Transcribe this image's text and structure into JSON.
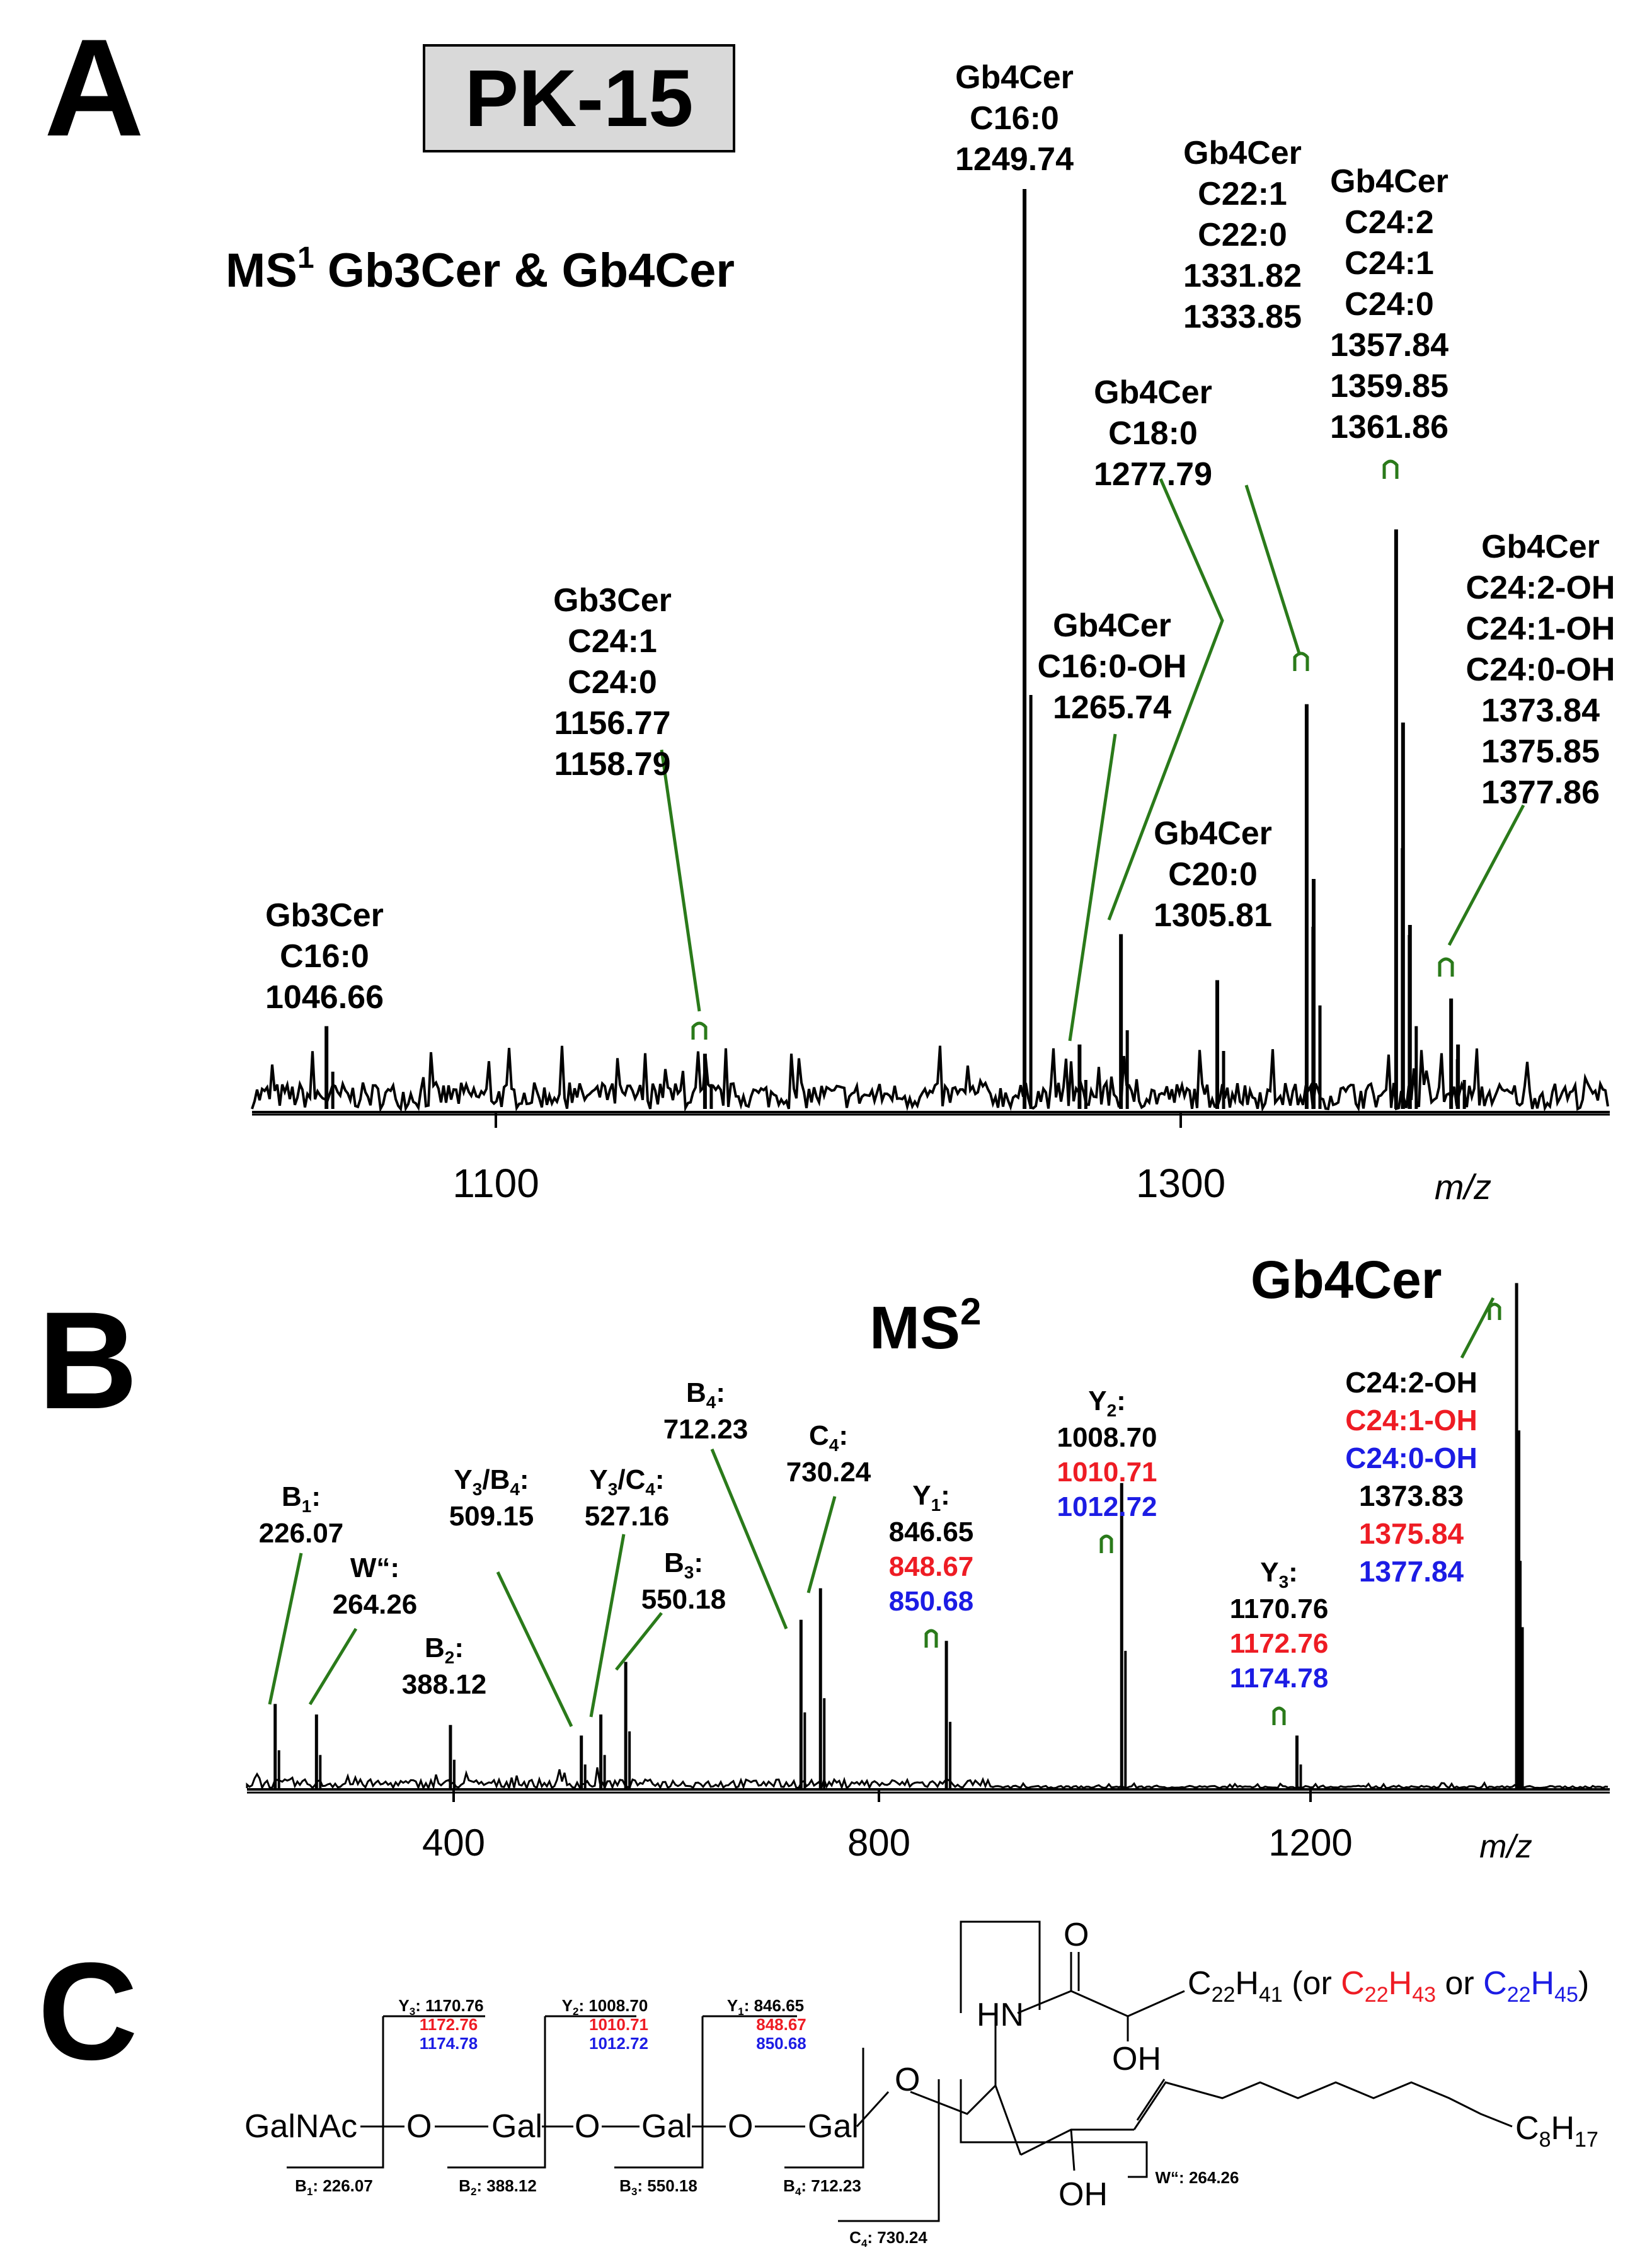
{
  "panel_a": {
    "letter": "A",
    "cell_line": "PK-15",
    "heading": "MS",
    "heading_sup": "1",
    "heading_rest": " Gb3Cer & Gb4Cer",
    "ticks": [
      "1100",
      "1300"
    ],
    "xlabel": "m/z",
    "labels": [
      [
        "Gb3Cer",
        "C16:0",
        "1046.66"
      ],
      [
        "Gb3Cer",
        "C24:1",
        "C24:0",
        "1156.77",
        "1158.79"
      ],
      [
        "Gb4Cer",
        "C16:0",
        "1249.74"
      ],
      [
        "Gb4Cer",
        "C16:0-OH",
        "1265.74"
      ],
      [
        "Gb4Cer",
        "C18:0",
        "1277.79"
      ],
      [
        "Gb4Cer",
        "C20:0",
        "1305.81"
      ],
      [
        "Gb4Cer",
        "C22:1",
        "C22:0",
        "1331.82",
        "1333.85"
      ],
      [
        "Gb4Cer",
        "C24:2",
        "C24:1",
        "C24:0",
        "1357.84",
        "1359.85",
        "1361.86"
      ],
      [
        "Gb4Cer",
        "C24:2-OH",
        "C24:1-OH",
        "C24:0-OH",
        "1373.84",
        "1375.85",
        "1377.86"
      ]
    ]
  },
  "panel_b": {
    "letter": "B",
    "heading": "MS",
    "heading_sup": "2",
    "compound": "Gb4Cer",
    "ticks": [
      "400",
      "800",
      "1200"
    ],
    "xlabel": "m/z",
    "ion_labels": {
      "B1": [
        "B",
        "1",
        ":",
        "226.07"
      ],
      "W": [
        "W“:",
        "264.26"
      ],
      "B2": [
        "B",
        "2",
        ":",
        "388.12"
      ],
      "Y3B4": [
        "Y",
        "3",
        "/B",
        "4",
        ":",
        "509.15"
      ],
      "Y3C4": [
        "Y",
        "3",
        "/C",
        "4",
        ":",
        "527.16"
      ],
      "B3": [
        "B",
        "3",
        ":",
        "550.18"
      ],
      "B4": [
        "B",
        "4",
        ":",
        "712.23"
      ],
      "C4": [
        "C",
        "4",
        ":",
        "730.24"
      ],
      "Y1": [
        "Y",
        "1",
        ":",
        "846.65",
        "848.67",
        "850.68"
      ],
      "Y2": [
        "Y",
        "2",
        ":",
        "1008.70",
        "1010.71",
        "1012.72"
      ],
      "Y3": [
        "Y",
        "3",
        ":",
        "1170.76",
        "1172.76",
        "1174.78"
      ],
      "prec": [
        "C24:2-OH",
        "C24:1-OH",
        "C24:0-OH",
        "1373.83",
        "1375.84",
        "1377.84"
      ]
    }
  },
  "panel_c": {
    "letter": "C",
    "sugars": [
      "GalNAc",
      "O",
      "Gal",
      "O",
      "Gal",
      "O",
      "Gal",
      "O"
    ],
    "y_frag": {
      "Y3": [
        "Y",
        "3",
        ": 1170.76",
        "1172.76",
        "1174.78"
      ],
      "Y2": [
        "Y",
        "2",
        ": 1008.70",
        "1010.71",
        "1012.72"
      ],
      "Y1": [
        "Y",
        "1",
        ": 846.65",
        "848.67",
        "850.68"
      ]
    },
    "b_frag": {
      "B1": [
        "B",
        "1",
        ": 226.07"
      ],
      "B2": [
        "B",
        "2",
        ": 388.12"
      ],
      "B3": [
        "B",
        "3",
        ": 550.18"
      ],
      "B4": [
        "B",
        "4",
        ": 712.23"
      ],
      "C4": [
        "C",
        "4",
        ": 730.24"
      ],
      "W": [
        "W“: 264.26"
      ]
    },
    "atoms": {
      "O": "O",
      "HN": "HN",
      "OH1": "OH",
      "OH2": "OH"
    },
    "chain": [
      "C",
      "22",
      "H",
      "41",
      " (or ",
      "C",
      "22",
      "H",
      "43",
      " or ",
      "C",
      "22",
      "H",
      "45",
      ")"
    ],
    "tail": [
      "C",
      "8",
      "H",
      "17"
    ]
  },
  "colors": {
    "black": "#000000",
    "red": "#ee1c24",
    "blue": "#1c1ce4",
    "green": "#2a7a1a",
    "box": "#d9d9d9"
  },
  "chart_data": [
    {
      "type": "line",
      "xlabel": "m/z",
      "xlim": [
        1025,
        1420
      ],
      "x_ticks": [
        1100,
        1300
      ],
      "y_axis": "relative intensity (not printed)",
      "peaks": [
        {
          "x": 1046.66,
          "y": 0.09
        },
        {
          "x": 1156.77,
          "y": 0.06
        },
        {
          "x": 1249.74,
          "y": 1.0
        },
        {
          "x": 1265.74,
          "y": 0.07
        },
        {
          "x": 1277.79,
          "y": 0.19
        },
        {
          "x": 1305.81,
          "y": 0.14
        },
        {
          "x": 1331.82,
          "y": 0.44
        },
        {
          "x": 1333.85,
          "y": 0.25
        },
        {
          "x": 1357.84,
          "y": 0.63
        },
        {
          "x": 1359.85,
          "y": 0.42
        },
        {
          "x": 1361.86,
          "y": 0.2
        },
        {
          "x": 1373.84,
          "y": 0.12
        },
        {
          "x": 1375.85,
          "y": 0.07
        }
      ]
    },
    {
      "type": "line",
      "xlabel": "m/z",
      "xlim": [
        200,
        1460
      ],
      "x_ticks": [
        400,
        800,
        1200
      ],
      "y_axis": "relative intensity (not printed)",
      "peaks": [
        {
          "x": 226.07,
          "y": 0.08
        },
        {
          "x": 264.26,
          "y": 0.07
        },
        {
          "x": 388.12,
          "y": 0.06
        },
        {
          "x": 509.15,
          "y": 0.05
        },
        {
          "x": 527.16,
          "y": 0.07
        },
        {
          "x": 550.18,
          "y": 0.12
        },
        {
          "x": 712.23,
          "y": 0.16
        },
        {
          "x": 730.24,
          "y": 0.19
        },
        {
          "x": 846.65,
          "y": 0.14
        },
        {
          "x": 1008.7,
          "y": 0.29
        },
        {
          "x": 1170.76,
          "y": 0.05
        },
        {
          "x": 1373.83,
          "y": 0.48
        },
        {
          "x": 1375.84,
          "y": 0.34
        }
      ]
    }
  ]
}
